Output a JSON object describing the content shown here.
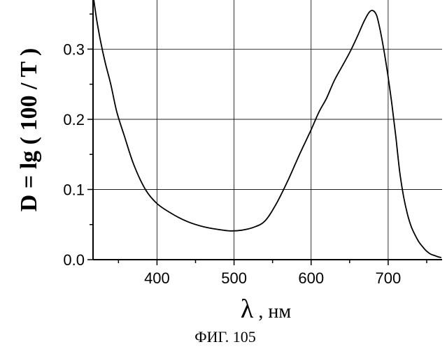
{
  "chart_data": {
    "type": "line",
    "title": "",
    "ylabel": "D = lg ( 100 / T )",
    "xlabel_symbol": "λ",
    "xlabel_rest": " , нм",
    "xlim": [
      317,
      770
    ],
    "ylim": [
      0.0,
      0.37
    ],
    "x_ticks": [
      400,
      500,
      600,
      700
    ],
    "x_tick_labels": [
      "400",
      "500",
      "600",
      "700"
    ],
    "y_ticks": [
      0.0,
      0.1,
      0.2,
      0.3
    ],
    "y_tick_labels": [
      "0.0",
      "0.1",
      "0.2",
      "0.3"
    ],
    "grid": true,
    "legend": "none",
    "series": [
      {
        "x": [
          318,
          322,
          327,
          333,
          340,
          348,
          358,
          370,
          385,
          400,
          420,
          440,
          460,
          480,
          495,
          510,
          525,
          540,
          555,
          570,
          585,
          600,
          610,
          620,
          630,
          640,
          650,
          660,
          668,
          675,
          680,
          685,
          690,
          695,
          700,
          705,
          710,
          715,
          720,
          725,
          730,
          735,
          740,
          745,
          750,
          755,
          760,
          765,
          769
        ],
        "y": [
          0.37,
          0.34,
          0.31,
          0.28,
          0.25,
          0.21,
          0.175,
          0.135,
          0.1,
          0.08,
          0.065,
          0.054,
          0.047,
          0.043,
          0.041,
          0.042,
          0.046,
          0.055,
          0.08,
          0.113,
          0.15,
          0.185,
          0.21,
          0.23,
          0.255,
          0.275,
          0.295,
          0.318,
          0.338,
          0.352,
          0.355,
          0.348,
          0.325,
          0.295,
          0.26,
          0.22,
          0.175,
          0.125,
          0.09,
          0.065,
          0.047,
          0.035,
          0.025,
          0.018,
          0.012,
          0.008,
          0.006,
          0.004,
          0.003
        ]
      }
    ]
  },
  "caption": "ФИГ. 105"
}
